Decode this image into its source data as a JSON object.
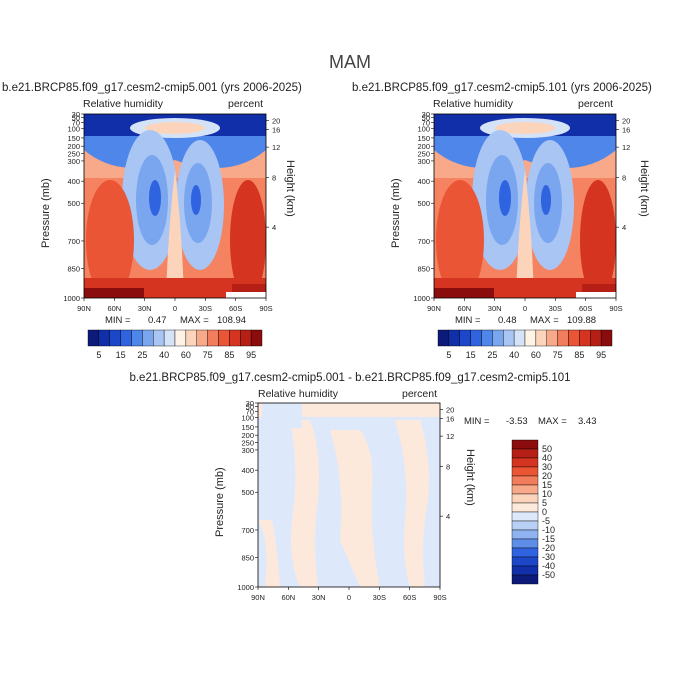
{
  "page_title": "MAM",
  "chart_data": [
    {
      "type": "heatmap",
      "title": "b.e21.BRCP85.f09_g17.cesm2-cmip5.001 (yrs 2006-2025)",
      "left_label": "Relative humidity",
      "right_label": "percent",
      "xlabel": "",
      "ylabel": "Pressure (mb)",
      "ylabel_right": "Height (km)",
      "x_ticks": [
        "90N",
        "60N",
        "30N",
        "0",
        "30S",
        "60S",
        "90S"
      ],
      "y_ticks": [
        "30",
        "50",
        "70",
        "100",
        "150",
        "200",
        "250",
        "300",
        "400",
        "500",
        "700",
        "850",
        "1000"
      ],
      "y_ticks_right": [
        "20",
        "16",
        "12",
        "8",
        "4"
      ],
      "min_label": "MIN =",
      "min_value": "0.47",
      "max_label": "MAX =",
      "max_value": "108.94",
      "colorbar": {
        "labels": [
          "5",
          "15",
          "25",
          "40",
          "60",
          "75",
          "85",
          "95"
        ],
        "colors": [
          "#0c1a7a",
          "#102fa8",
          "#1c47c9",
          "#2f63e0",
          "#4f86ea",
          "#7aa6f0",
          "#a9c5f4",
          "#d4e3f8",
          "#fff3e6",
          "#fbd4bb",
          "#f7a98a",
          "#f27d5c",
          "#ea5535",
          "#d53420",
          "#b51f16",
          "#8a0c0c"
        ]
      }
    },
    {
      "type": "heatmap",
      "title": "b.e21.BRCP85.f09_g17.cesm2-cmip5.101 (yrs 2006-2025)",
      "left_label": "Relative humidity",
      "right_label": "percent",
      "xlabel": "",
      "ylabel": "Pressure (mb)",
      "ylabel_right": "Height (km)",
      "x_ticks": [
        "90N",
        "60N",
        "30N",
        "0",
        "30S",
        "60S",
        "90S"
      ],
      "y_ticks": [
        "30",
        "50",
        "70",
        "100",
        "150",
        "200",
        "250",
        "300",
        "400",
        "500",
        "700",
        "850",
        "1000"
      ],
      "y_ticks_right": [
        "20",
        "16",
        "12",
        "8",
        "4"
      ],
      "min_label": "MIN =",
      "min_value": "0.48",
      "max_label": "MAX =",
      "max_value": "109.88",
      "colorbar": {
        "labels": [
          "5",
          "15",
          "25",
          "40",
          "60",
          "75",
          "85",
          "95"
        ],
        "colors": [
          "#0c1a7a",
          "#102fa8",
          "#1c47c9",
          "#2f63e0",
          "#4f86ea",
          "#7aa6f0",
          "#a9c5f4",
          "#d4e3f8",
          "#fff3e6",
          "#fbd4bb",
          "#f7a98a",
          "#f27d5c",
          "#ea5535",
          "#d53420",
          "#b51f16",
          "#8a0c0c"
        ]
      }
    },
    {
      "type": "heatmap",
      "title": "b.e21.BRCP85.f09_g17.cesm2-cmip5.001 - b.e21.BRCP85.f09_g17.cesm2-cmip5.101",
      "left_label": "Relative humidity",
      "right_label": "percent",
      "xlabel": "",
      "ylabel": "Pressure (mb)",
      "ylabel_right": "Height (km)",
      "x_ticks": [
        "90N",
        "60N",
        "30N",
        "0",
        "30S",
        "60S",
        "90S"
      ],
      "y_ticks": [
        "30",
        "50",
        "70",
        "100",
        "150",
        "200",
        "250",
        "300",
        "400",
        "500",
        "700",
        "850",
        "1000"
      ],
      "y_ticks_right": [
        "20",
        "16",
        "12",
        "8",
        "4"
      ],
      "min_label": "MIN =",
      "min_value": "-3.53",
      "max_label": "MAX =",
      "max_value": "3.43",
      "colorbar": {
        "labels": [
          "50",
          "40",
          "30",
          "20",
          "15",
          "10",
          "5",
          "0",
          "-5",
          "-10",
          "-15",
          "-20",
          "-30",
          "-40",
          "-50"
        ],
        "colors": [
          "#8a0c0c",
          "#b51f16",
          "#d53420",
          "#ea5535",
          "#f27d5c",
          "#f7a98a",
          "#fbd4bb",
          "#fde9dc",
          "#dde9fb",
          "#b8d0f5",
          "#8fb2f0",
          "#5f8ee8",
          "#2f63e0",
          "#1c47c9",
          "#102fa8",
          "#0c1a7a"
        ]
      }
    }
  ]
}
